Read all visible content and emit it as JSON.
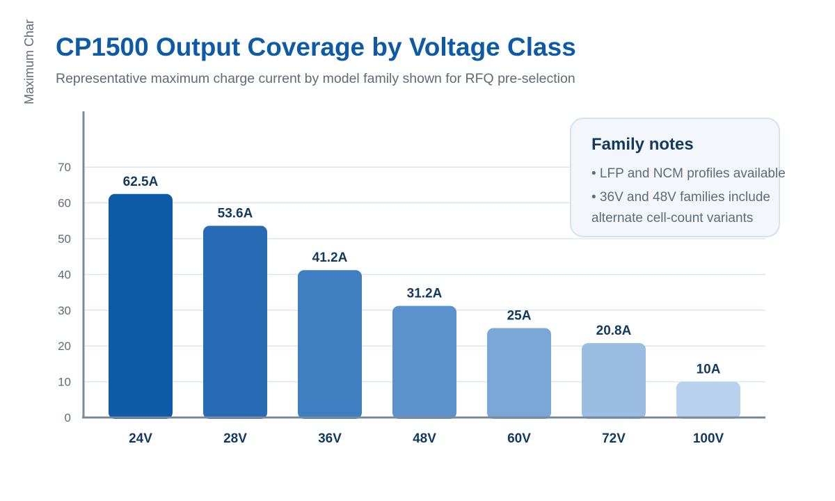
{
  "chart_data": {
    "type": "bar",
    "title": "CP1500 Output Coverage by Voltage Class",
    "subtitle": "Representative maximum charge current by model family shown for RFQ pre-selection",
    "ylabel": "Maximum Char",
    "xlabel": "",
    "categories": [
      "24V",
      "28V",
      "36V",
      "48V",
      "60V",
      "72V",
      "100V"
    ],
    "values": [
      62.5,
      53.6,
      41.2,
      31.2,
      25,
      20.8,
      10
    ],
    "data_labels": [
      "62.5A",
      "53.6A",
      "41.2A",
      "31.2A",
      "25A",
      "20.8A",
      "10A"
    ],
    "ylim": [
      0,
      70
    ],
    "yticks": [
      0,
      10,
      20,
      30,
      40,
      50,
      60,
      70
    ],
    "grid": true,
    "bar_colors": [
      "#0d5aa7",
      "#276bb5",
      "#3f7ec1",
      "#5b92cb",
      "#7aa7d6",
      "#9bbde2",
      "#b8d2ee"
    ]
  },
  "notes": {
    "title": "Family notes",
    "lines": [
      "• LFP and NCM profiles available",
      "• 36V and 48V families include",
      "alternate cell-count variants"
    ]
  }
}
